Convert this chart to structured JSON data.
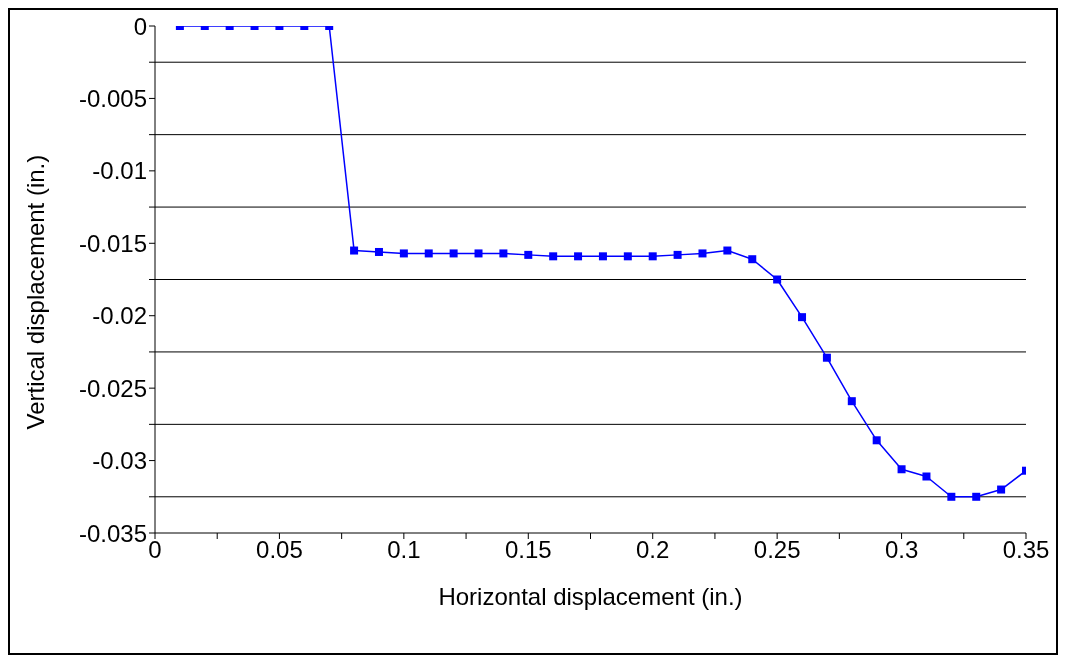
{
  "chart_data": {
    "type": "line",
    "xlabel": "Horizontal displacement (in.)",
    "ylabel": "Vertical displacement (in.)",
    "x": [
      0.01,
      0.02,
      0.03,
      0.04,
      0.05,
      0.06,
      0.07,
      0.08,
      0.09,
      0.1,
      0.11,
      0.12,
      0.13,
      0.14,
      0.15,
      0.16,
      0.17,
      0.18,
      0.19,
      0.2,
      0.21,
      0.22,
      0.23,
      0.24,
      0.25,
      0.26,
      0.27,
      0.28,
      0.29,
      0.3,
      0.31,
      0.32,
      0.33,
      0.34,
      0.35
    ],
    "series": [
      {
        "color": "#0000ff",
        "values": [
          0,
          0,
          0,
          0,
          0,
          0,
          0,
          -0.0155,
          -0.0156,
          -0.0157,
          -0.0157,
          -0.0157,
          -0.0157,
          -0.0157,
          -0.0158,
          -0.0159,
          -0.0159,
          -0.0159,
          -0.0159,
          -0.0159,
          -0.0158,
          -0.0157,
          -0.0155,
          -0.0161,
          -0.0175,
          -0.0201,
          -0.0229,
          -0.0259,
          -0.0286,
          -0.0306,
          -0.0311,
          -0.0325,
          -0.0325,
          -0.032,
          -0.0307
        ]
      }
    ],
    "xlim": [
      0,
      0.35
    ],
    "xticks": [
      0,
      {
        "value": 0.025,
        "label": null
      },
      0.05,
      {
        "value": 0.075,
        "label": null
      },
      0.1,
      {
        "value": 0.125,
        "label": null
      },
      0.15,
      {
        "value": 0.175,
        "label": null
      },
      0.2,
      {
        "value": 0.225,
        "label": null
      },
      0.25,
      {
        "value": 0.275,
        "label": null
      },
      0.3,
      {
        "value": 0.325,
        "label": null
      },
      0.35
    ],
    "ylim": [
      -0.035,
      0
    ],
    "yticks": [
      0,
      {
        "value": -0.0025,
        "label": null
      },
      -0.005,
      {
        "value": -0.0075,
        "label": null
      },
      -0.01,
      {
        "value": -0.0125,
        "label": null
      },
      -0.015,
      {
        "value": -0.0175,
        "label": null
      },
      -0.02,
      {
        "value": -0.0225,
        "label": null
      },
      -0.025,
      {
        "value": -0.0275,
        "label": null
      },
      -0.03,
      {
        "value": -0.0325,
        "label": null
      },
      -0.035
    ],
    "grid": "y",
    "marker": "square",
    "line_style": "solid",
    "legend": false
  }
}
